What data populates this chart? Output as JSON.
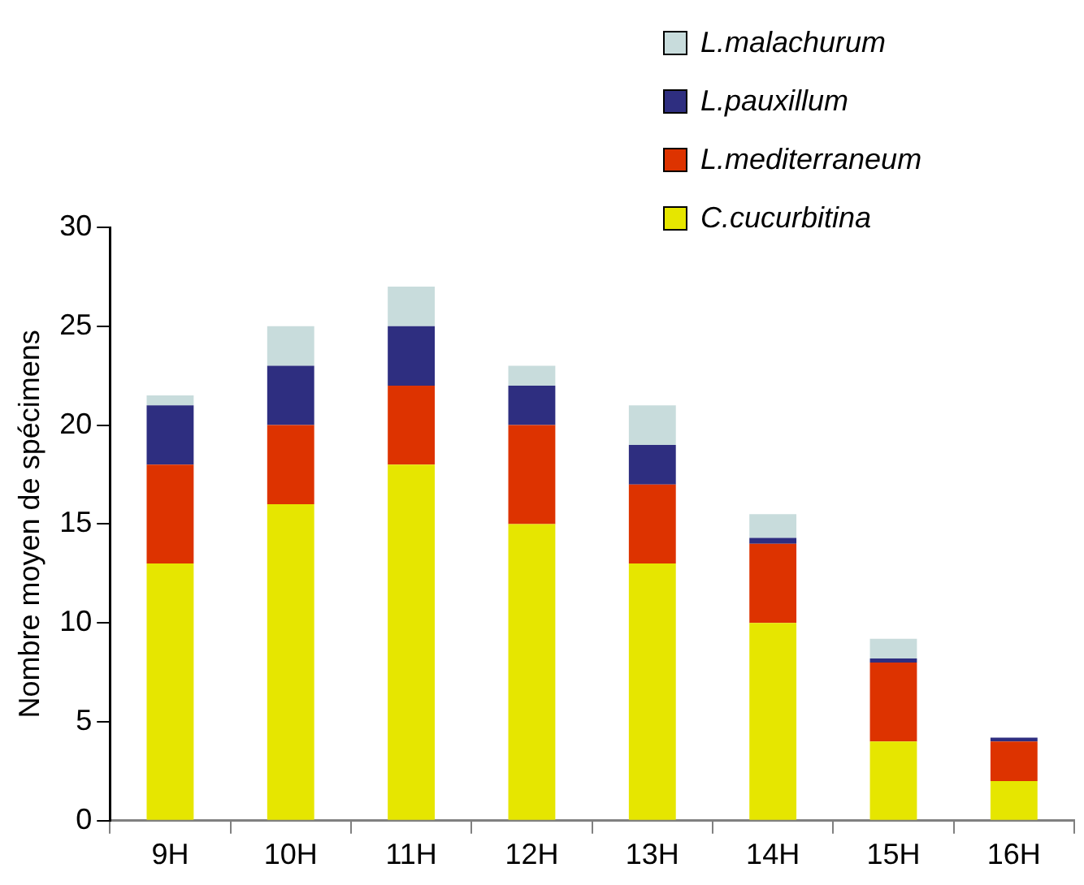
{
  "chart_data": {
    "type": "bar",
    "stacked": true,
    "ylabel": "Nombre moyen de spécimens",
    "categories": [
      "9H",
      "10H",
      "11H",
      "12H",
      "13H",
      "14H",
      "15H",
      "16H"
    ],
    "series": [
      {
        "name": "C.cucurbitina",
        "color": "#e6e600",
        "values": [
          13,
          16,
          18,
          15,
          13,
          10,
          4,
          2
        ]
      },
      {
        "name": "L.mediterraneum",
        "color": "#dd3300",
        "values": [
          5,
          4,
          4,
          5,
          4,
          4,
          4,
          2
        ]
      },
      {
        "name": "L.pauxillum",
        "color": "#2e2e80",
        "values": [
          3,
          3,
          3,
          2,
          2,
          0.3,
          0.2,
          0.2
        ]
      },
      {
        "name": "L.malachurum",
        "color": "#c8dcdc",
        "values": [
          0.5,
          2,
          2,
          1,
          2,
          1.2,
          1,
          null
        ]
      }
    ],
    "ylim": [
      0,
      30
    ],
    "yticks": [
      0,
      5,
      10,
      15,
      20,
      25,
      30
    ],
    "grid": false,
    "legend": "top right"
  }
}
